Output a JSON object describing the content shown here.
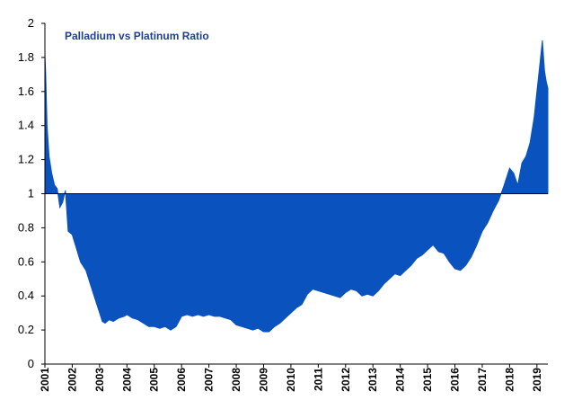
{
  "chart_data": {
    "type": "area",
    "title": "Palladium vs Platinum Ratio",
    "xlabel": "",
    "ylabel": "",
    "baseline": 1,
    "ylim": [
      0,
      2
    ],
    "xlim": [
      2001,
      2019.4
    ],
    "yticks": [
      "0",
      "0.2",
      "0.4",
      "0.6",
      "0.8",
      "1",
      "1.2",
      "1.4",
      "1.6",
      "1.8",
      "2"
    ],
    "xticks": [
      "2001",
      "2002",
      "2003",
      "2004",
      "2005",
      "2006",
      "2007",
      "2008",
      "2009",
      "2010",
      "2011",
      "2012",
      "2013",
      "2014",
      "2015",
      "2016",
      "2017",
      "2018",
      "2019"
    ],
    "grid": false,
    "fill_color": "#0a52be",
    "series": [
      {
        "name": "",
        "x": [
          2001.0,
          2001.03,
          2001.08,
          2001.15,
          2001.25,
          2001.35,
          2001.45,
          2001.55,
          2001.65,
          2001.75,
          2001.85,
          2002.0,
          2002.15,
          2002.3,
          2002.5,
          2002.7,
          2002.9,
          2003.0,
          2003.1,
          2003.2,
          2003.35,
          2003.5,
          2003.7,
          2003.9,
          2004.0,
          2004.2,
          2004.4,
          2004.6,
          2004.8,
          2005.0,
          2005.2,
          2005.4,
          2005.6,
          2005.8,
          2006.0,
          2006.2,
          2006.4,
          2006.6,
          2006.8,
          2007.0,
          2007.2,
          2007.4,
          2007.6,
          2007.8,
          2008.0,
          2008.2,
          2008.4,
          2008.6,
          2008.8,
          2009.0,
          2009.2,
          2009.4,
          2009.6,
          2009.8,
          2010.0,
          2010.2,
          2010.4,
          2010.6,
          2010.8,
          2011.0,
          2011.2,
          2011.4,
          2011.6,
          2011.8,
          2012.0,
          2012.2,
          2012.4,
          2012.6,
          2012.8,
          2013.0,
          2013.2,
          2013.4,
          2013.6,
          2013.8,
          2014.0,
          2014.2,
          2014.4,
          2014.6,
          2014.8,
          2015.0,
          2015.2,
          2015.4,
          2015.6,
          2015.8,
          2016.0,
          2016.2,
          2016.4,
          2016.6,
          2016.8,
          2017.0,
          2017.2,
          2017.4,
          2017.6,
          2017.8,
          2018.0,
          2018.15,
          2018.3,
          2018.45,
          2018.6,
          2018.75,
          2018.9,
          2019.0,
          2019.1,
          2019.2,
          2019.28,
          2019.35,
          2019.4
        ],
        "y": [
          1.82,
          1.7,
          1.4,
          1.22,
          1.12,
          1.05,
          1.03,
          0.92,
          0.95,
          1.02,
          0.78,
          0.76,
          0.68,
          0.6,
          0.55,
          0.45,
          0.35,
          0.3,
          0.25,
          0.24,
          0.26,
          0.25,
          0.27,
          0.28,
          0.29,
          0.27,
          0.26,
          0.24,
          0.22,
          0.22,
          0.21,
          0.22,
          0.2,
          0.22,
          0.28,
          0.29,
          0.28,
          0.29,
          0.28,
          0.29,
          0.28,
          0.28,
          0.27,
          0.26,
          0.23,
          0.22,
          0.21,
          0.2,
          0.21,
          0.19,
          0.19,
          0.22,
          0.24,
          0.27,
          0.3,
          0.33,
          0.35,
          0.41,
          0.44,
          0.43,
          0.42,
          0.41,
          0.4,
          0.39,
          0.42,
          0.44,
          0.43,
          0.4,
          0.41,
          0.4,
          0.43,
          0.47,
          0.5,
          0.53,
          0.52,
          0.55,
          0.58,
          0.62,
          0.64,
          0.67,
          0.7,
          0.66,
          0.65,
          0.6,
          0.56,
          0.55,
          0.58,
          0.63,
          0.7,
          0.78,
          0.83,
          0.9,
          0.96,
          1.05,
          1.15,
          1.12,
          1.05,
          1.18,
          1.22,
          1.3,
          1.45,
          1.6,
          1.75,
          1.9,
          1.72,
          1.65,
          1.62
        ]
      }
    ]
  }
}
